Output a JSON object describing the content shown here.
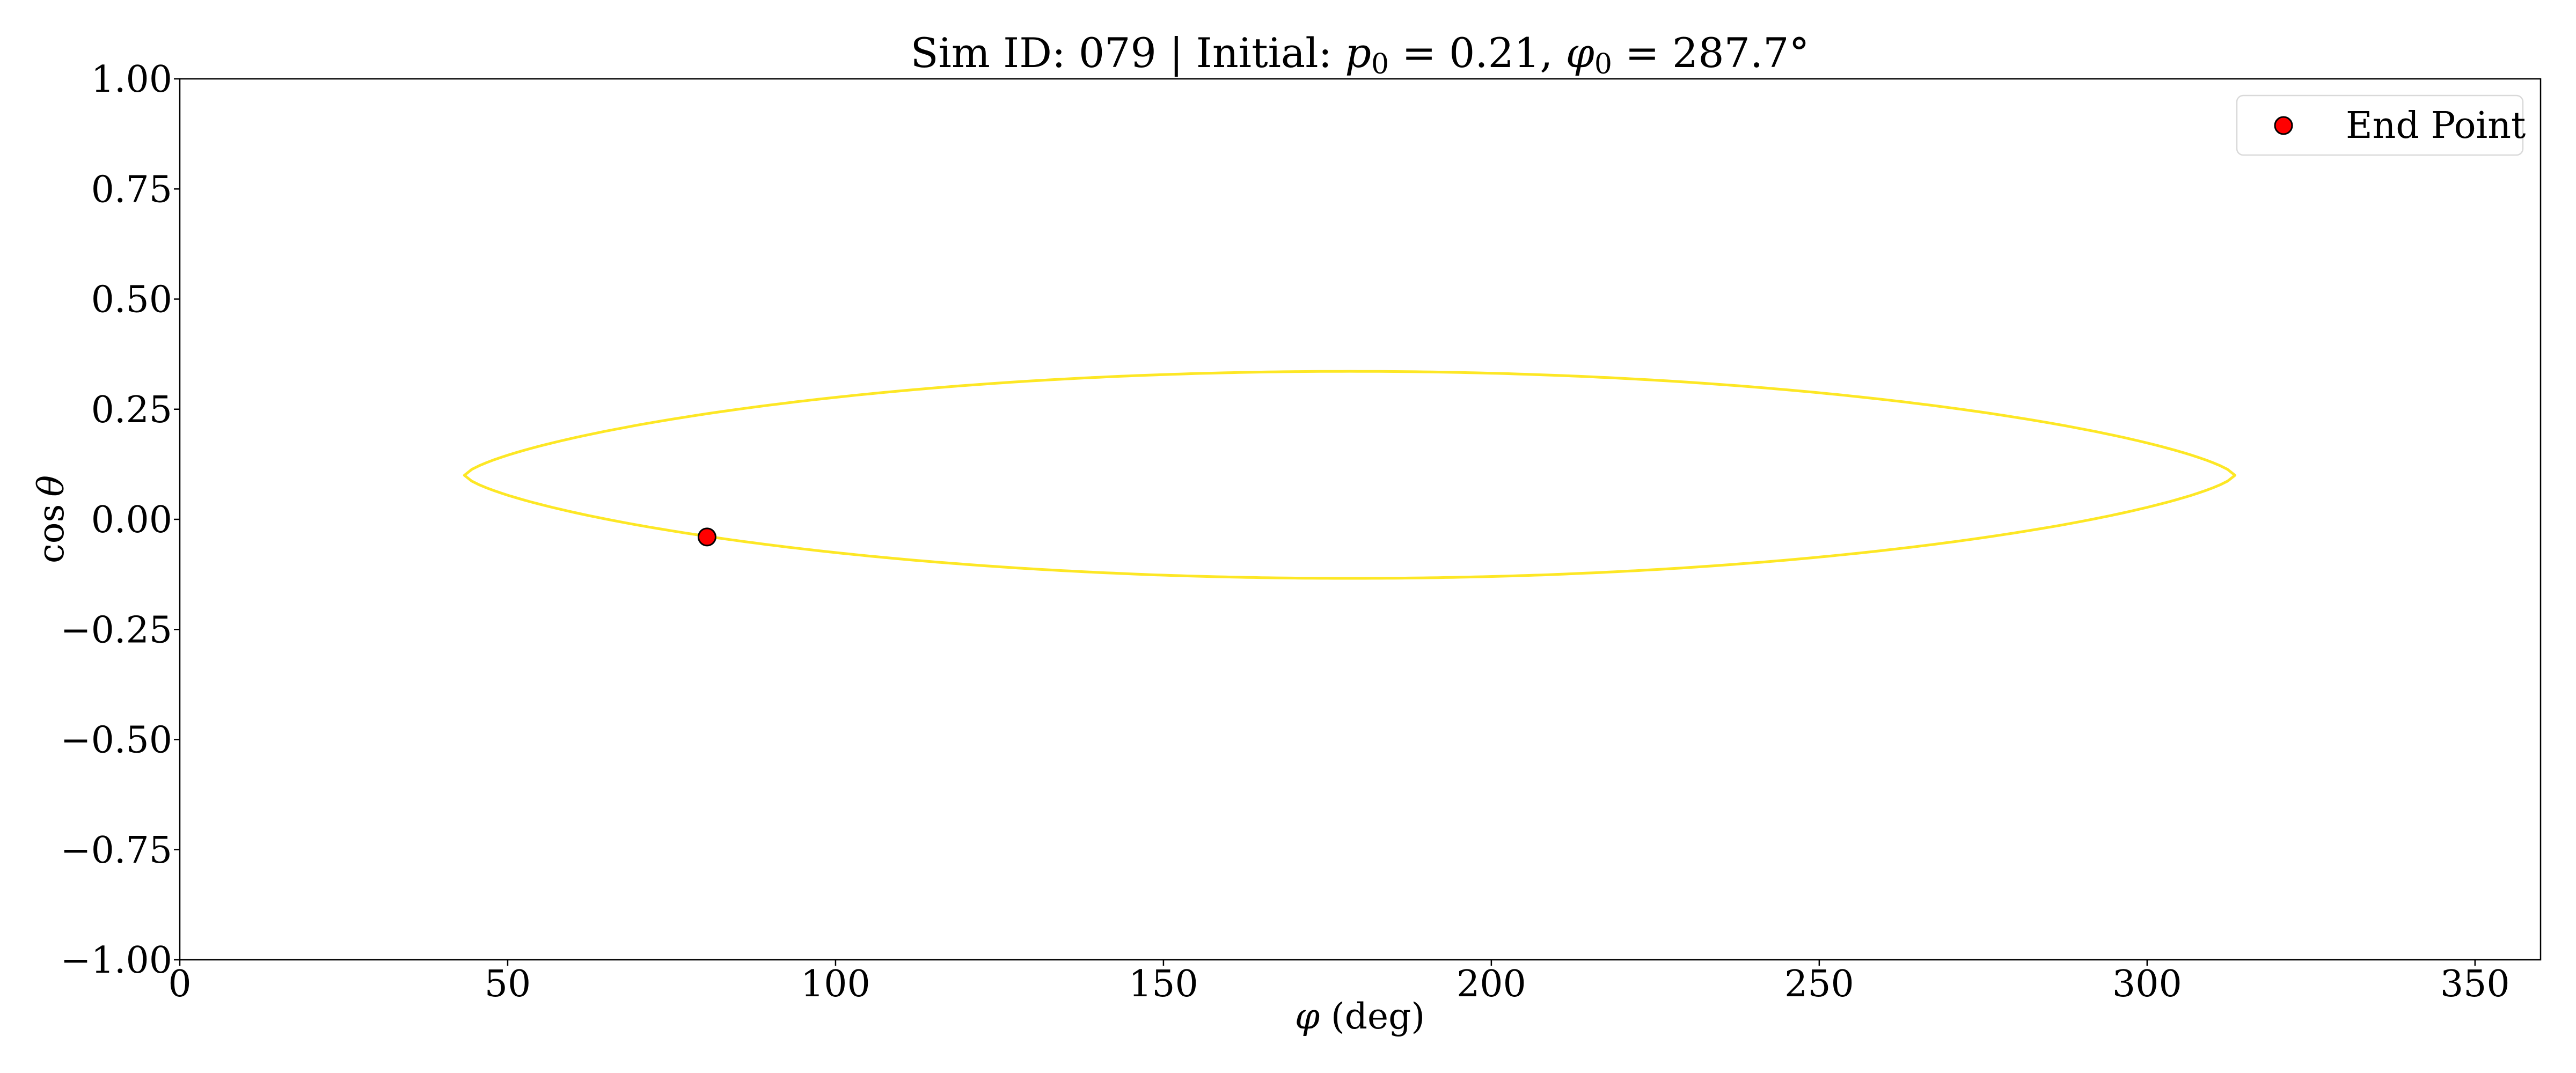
{
  "chart_data": {
    "type": "line",
    "title": "Sim ID: 079 | Initial: p0 = 0.21, φ0 = 287.7°",
    "title_parts": {
      "prefix": "Sim ID: 079 | Initial: ",
      "p_symbol": "p",
      "p_sub": "0",
      "p_value": " = 0.21, ",
      "phi_symbol": "φ",
      "phi_sub": "0",
      "phi_value": " = 287.7°"
    },
    "xlabel": "φ (deg)",
    "xlabel_parts": {
      "symbol": "φ",
      "rest": " (deg)"
    },
    "ylabel": "cos θ",
    "ylabel_parts": {
      "func": "cos",
      "symbol": "θ"
    },
    "xlim": [
      0,
      360
    ],
    "ylim": [
      -1.0,
      1.0
    ],
    "xticks": [
      0,
      50,
      100,
      150,
      200,
      250,
      300,
      350
    ],
    "xtick_labels": [
      "0",
      "50",
      "100",
      "150",
      "200",
      "250",
      "300",
      "350"
    ],
    "yticks": [
      1.0,
      0.75,
      0.5,
      0.25,
      0.0,
      -0.25,
      -0.5,
      -0.75,
      -1.0
    ],
    "ytick_labels": [
      "1.00",
      "0.75",
      "0.50",
      "0.25",
      "0.00",
      "−0.25",
      "−0.50",
      "−0.75",
      "−1.00"
    ],
    "grid": false,
    "legend_position": "upper right",
    "series": [
      {
        "name": "trajectory",
        "type": "line",
        "color": "#fde725",
        "description": "closed orbit in (φ, cos θ); φ from ~43.4° to ~313.3°, cos θ from ~-0.134 to ~0.336, turning points at cos θ ≈ 0.10",
        "shape": {
          "phi_center": 178.4,
          "phi_halfwidth": 135.0,
          "cos_turn": 0.1,
          "top_amp": 0.236,
          "bottom_amp": 0.234,
          "exponent": 0.7
        },
        "x": [
          43.4,
          50,
          60,
          70,
          80,
          91.3,
          100,
          120,
          140,
          160,
          178.4,
          200,
          220,
          240,
          260,
          280,
          300,
          313.3,
          300,
          280,
          260,
          240,
          220,
          200,
          178.4,
          160,
          140,
          120,
          100,
          91.3,
          80,
          70,
          60,
          50,
          43.4
        ],
        "y": [
          0.1,
          0.165,
          0.202,
          0.23,
          0.251,
          0.262,
          0.282,
          0.307,
          0.325,
          0.333,
          0.336,
          0.333,
          0.322,
          0.303,
          0.277,
          0.241,
          0.185,
          0.1,
          0.017,
          -0.04,
          -0.077,
          -0.102,
          -0.121,
          -0.131,
          -0.134,
          -0.131,
          -0.119,
          -0.1,
          -0.077,
          -0.061,
          -0.04,
          -0.03,
          -0.001,
          0.036,
          0.1
        ]
      },
      {
        "name": "End Point",
        "type": "scatter",
        "color": "#ff0000",
        "edgecolor": "#000000",
        "x": [
          80.4
        ],
        "y": [
          -0.04
        ]
      }
    ],
    "legend": [
      {
        "label": "End Point",
        "marker": "circle",
        "color": "#ff0000",
        "edgecolor": "#000000"
      }
    ]
  },
  "legend": {
    "end_point_label": "End Point"
  },
  "colors": {
    "trajectory": "#fde725",
    "end_point": "#ff0000",
    "axes": "#000000",
    "legend_border": "#d9d9d9"
  }
}
